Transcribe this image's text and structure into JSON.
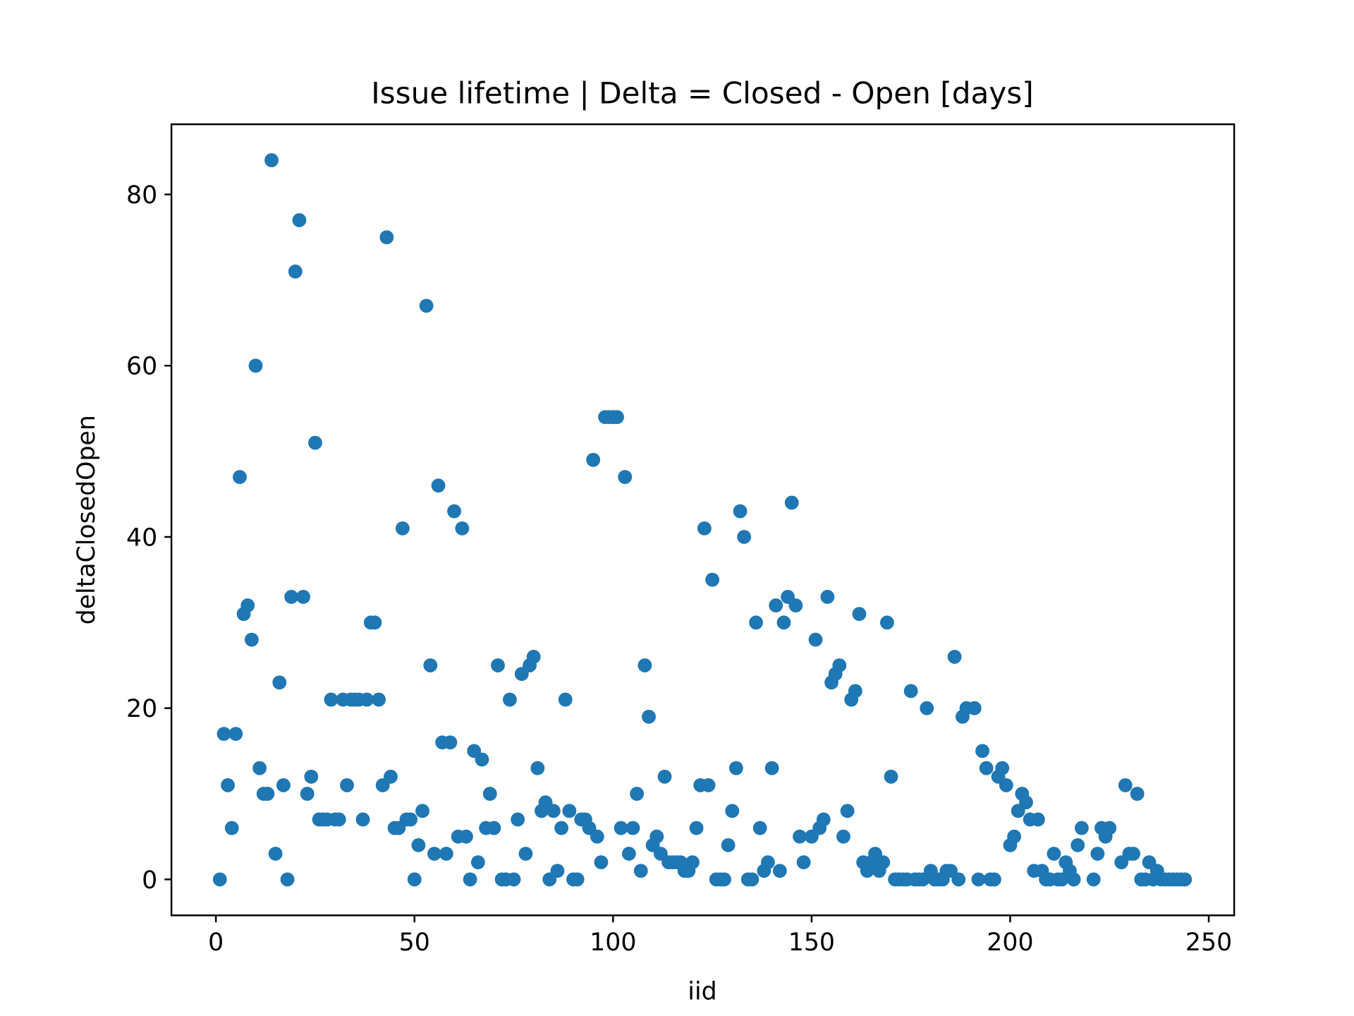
{
  "chart_data": {
    "type": "scatter",
    "title": "Issue lifetime | Delta = Closed - Open [days]",
    "x_label": "iid",
    "y_label": "deltaClosedOpen",
    "color": "#1f77b4",
    "grid": false,
    "xlim": [
      -11.2,
      256.4
    ],
    "ylim": [
      -4.2,
      88.2
    ],
    "xticks": [
      0,
      50,
      100,
      150,
      200,
      250
    ],
    "yticks": [
      0,
      20,
      40,
      60,
      80
    ],
    "x": [
      1,
      2,
      3,
      4,
      5,
      6,
      7,
      8,
      9,
      10,
      11,
      12,
      13,
      14,
      15,
      16,
      17,
      18,
      19,
      20,
      21,
      22,
      23,
      24,
      25,
      26,
      27,
      28,
      29,
      30,
      31,
      32,
      33,
      34,
      35,
      36,
      37,
      38,
      39,
      40,
      41,
      42,
      43,
      44,
      45,
      46,
      47,
      48,
      49,
      50,
      51,
      52,
      53,
      54,
      55,
      56,
      57,
      58,
      59,
      60,
      61,
      62,
      63,
      64,
      65,
      66,
      67,
      68,
      69,
      70,
      71,
      72,
      73,
      74,
      75,
      76,
      77,
      78,
      79,
      80,
      81,
      82,
      83,
      84,
      85,
      86,
      87,
      88,
      89,
      90,
      91,
      92,
      93,
      94,
      95,
      96,
      97,
      98,
      99,
      100,
      101,
      102,
      103,
      104,
      105,
      106,
      107,
      108,
      109,
      110,
      111,
      112,
      113,
      114,
      115,
      116,
      117,
      118,
      119,
      120,
      121,
      122,
      123,
      124,
      125,
      126,
      127,
      128,
      129,
      130,
      131,
      132,
      133,
      134,
      135,
      136,
      137,
      138,
      139,
      140,
      141,
      142,
      143,
      144,
      145,
      146,
      147,
      148,
      150,
      151,
      152,
      153,
      154,
      155,
      156,
      157,
      158,
      159,
      160,
      161,
      162,
      163,
      164,
      165,
      166,
      167,
      168,
      169,
      170,
      171,
      172,
      173,
      174,
      175,
      176,
      177,
      178,
      179,
      180,
      181,
      182,
      183,
      184,
      185,
      186,
      187,
      188,
      189,
      191,
      192,
      193,
      194,
      195,
      196,
      197,
      198,
      199,
      200,
      201,
      202,
      203,
      204,
      205,
      206,
      207,
      208,
      209,
      210,
      211,
      212,
      213,
      214,
      215,
      216,
      217,
      218,
      221,
      222,
      223,
      224,
      225,
      228,
      229,
      230,
      231,
      232,
      233,
      234,
      235,
      236,
      237,
      238,
      239,
      240,
      241,
      242,
      243,
      244
    ],
    "values": [
      0,
      17,
      11,
      6,
      17,
      47,
      31,
      32,
      28,
      60,
      13,
      10,
      10,
      84,
      3,
      23,
      11,
      0,
      33,
      71,
      77,
      33,
      10,
      12,
      51,
      7,
      7,
      7,
      21,
      7,
      7,
      21,
      11,
      21,
      21,
      21,
      7,
      21,
      30,
      30,
      21,
      11,
      75,
      12,
      6,
      6,
      41,
      7,
      7,
      0,
      4,
      8,
      67,
      25,
      3,
      46,
      16,
      3,
      16,
      43,
      5,
      41,
      5,
      0,
      15,
      2,
      14,
      6,
      10,
      6,
      25,
      0,
      0,
      21,
      0,
      7,
      24,
      3,
      25,
      26,
      13,
      8,
      9,
      0,
      8,
      1,
      6,
      21,
      8,
      0,
      0,
      7,
      7,
      6,
      49,
      5,
      2,
      54,
      54,
      54,
      54,
      6,
      47,
      3,
      6,
      10,
      1,
      25,
      19,
      4,
      5,
      3,
      12,
      2,
      2,
      2,
      2,
      1,
      1,
      2,
      6,
      11,
      41,
      11,
      35,
      0,
      0,
      0,
      4,
      8,
      13,
      43,
      40,
      0,
      0,
      30,
      6,
      1,
      2,
      13,
      32,
      1,
      30,
      33,
      44,
      32,
      5,
      2,
      5,
      28,
      6,
      7,
      33,
      23,
      24,
      25,
      5,
      8,
      21,
      22,
      31,
      2,
      1,
      2,
      3,
      1,
      2,
      30,
      12,
      0,
      0,
      0,
      0,
      22,
      0,
      0,
      0,
      20,
      1,
      0,
      0,
      0,
      1,
      1,
      26,
      0,
      19,
      20,
      20,
      0,
      15,
      13,
      0,
      0,
      12,
      13,
      11,
      4,
      5,
      8,
      10,
      9,
      7,
      1,
      7,
      1,
      0,
      0,
      3,
      0,
      0,
      2,
      1,
      0,
      4,
      6,
      0,
      3,
      6,
      5,
      6,
      2,
      11,
      3,
      3,
      10,
      0,
      0,
      2,
      0,
      1,
      0,
      0,
      0,
      0,
      0,
      0,
      0
    ]
  }
}
